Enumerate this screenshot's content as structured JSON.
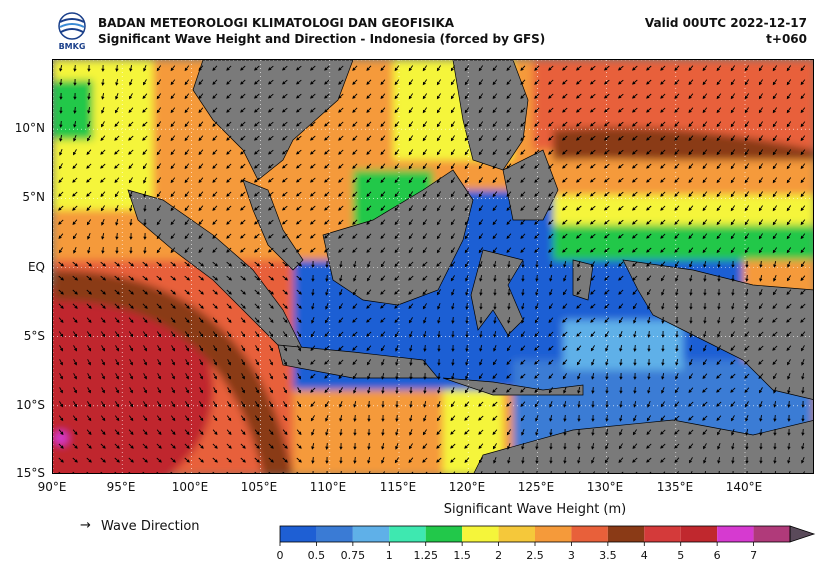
{
  "header": {
    "logo_text": "BMKG",
    "title_line1": "BADAN METEOROLOGI KLIMATOLOGI DAN GEOFISIKA",
    "title_line2": "Significant Wave Height and Direction - Indonesia (forced by GFS)",
    "valid": "Valid 00UTC 2022-12-17",
    "timestep": "t+060"
  },
  "map": {
    "lat_labels": [
      "10°N",
      "5°N",
      "EQ",
      "5°S",
      "10°S",
      "15°S"
    ],
    "lon_labels": [
      "90°E",
      "95°E",
      "100°E",
      "105°E",
      "110°E",
      "115°E",
      "120°E",
      "125°E",
      "130°E",
      "135°E",
      "140°E"
    ],
    "lon_range": [
      90,
      145
    ],
    "lat_range": [
      -15,
      15
    ],
    "land_color": "#7a7a7a",
    "arrow_color": "#000000"
  },
  "legend": {
    "arrow_glyph": "→",
    "arrow_label": "Wave Direction"
  },
  "colorbar": {
    "title": "Significant Wave Height (m)",
    "ticks": [
      "0",
      "0.5",
      "0.75",
      "1",
      "1.25",
      "1.5",
      "2",
      "2.5",
      "3",
      "3.5",
      "4",
      "5",
      "6",
      "7"
    ],
    "colors": [
      "#1e5fd4",
      "#3a7bd5",
      "#5fb0e8",
      "#3ee8b0",
      "#22c84a",
      "#f5f53a",
      "#f5c83a",
      "#f59a3a",
      "#e8603a",
      "#8a3a16",
      "#d43a3a",
      "#c0282e",
      "#d63ad0",
      "#b03a7a"
    ]
  }
}
